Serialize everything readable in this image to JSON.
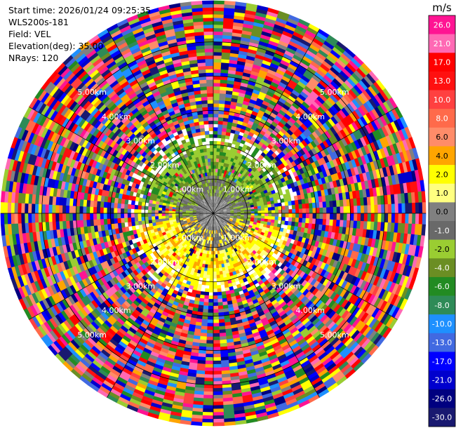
{
  "header": {
    "start_time": "Start time: 2026/01/24 09:25:35",
    "instrument": "WLS200s-181",
    "field": "Field: VEL",
    "elevation": "Elevation(deg): 35.00",
    "nrays": "NRays: 120"
  },
  "chart_data": {
    "type": "heatmap",
    "projection": "polar-ppi",
    "field": "VEL",
    "unit": "m/s",
    "n_rays": 120,
    "ring_labels": [
      "1.00km",
      "2.00km",
      "3.00km",
      "4.00km",
      "5.00km"
    ],
    "ring_ranges_km": [
      1,
      2,
      3,
      4,
      5
    ],
    "max_range_km": 6.2,
    "spokes_deg": 30,
    "colorbar": {
      "ticks": [
        "26.0",
        "21.0",
        "17.0",
        "13.0",
        "10.0",
        "8.0",
        "6.0",
        "4.0",
        "2.0",
        "1.0",
        "0.0",
        "-1.0",
        "-2.0",
        "-4.0",
        "-6.0",
        "-8.0",
        "-10.0",
        "-13.0",
        "-17.0",
        "-21.0",
        "-26.0",
        "-30.0"
      ],
      "colors": [
        "#ff1493",
        "#ff69b4",
        "#ff0000",
        "#ff1010",
        "#ff4040",
        "#ff6a4a",
        "#ff8c69",
        "#ffa500",
        "#ffff00",
        "#ffff80",
        "#808080",
        "#696969",
        "#9acd32",
        "#6b8e23",
        "#228b22",
        "#2e8b57",
        "#1e90ff",
        "#4169e1",
        "#0000ff",
        "#0000cd",
        "#000080",
        "#191970"
      ]
    }
  }
}
